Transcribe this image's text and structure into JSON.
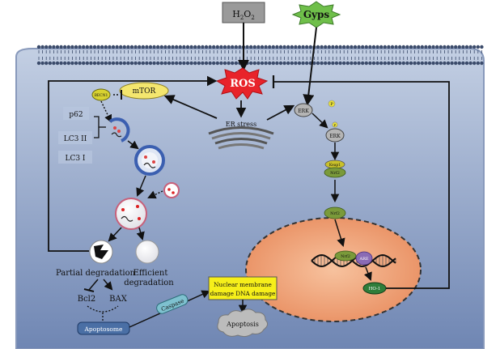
{
  "inputs": {
    "h2o2": "H2O2",
    "h2o2_base": "H",
    "h2o2_sub1": "2",
    "h2o2_mid": "O",
    "h2o2_sub2": "2",
    "gyps": "Gyps"
  },
  "nodes": {
    "ros": "ROS",
    "er_stress": "ER stress",
    "mtor": "mTOR",
    "becn1": "BECN1",
    "p62": "p62",
    "lc3_ii": "LC3 II",
    "lc3_i": "LC3 I",
    "erk": "ERK",
    "erk_p": "ERK",
    "p_label": "P",
    "p_label2": "P",
    "keap1": "Keap1",
    "nrf2_a": "Nrf2",
    "nrf2_b": "Nrf2",
    "nrf2_c": "Nrf2",
    "are": "ARE",
    "ho1": "HO-1"
  },
  "labels": {
    "partial_degradation": "Partial degradation",
    "efficient_line1": "Efficient",
    "efficient_line2": "degradation",
    "bcl2": "Bcl2",
    "bax": "BAX",
    "apoptosome": "Apoptosome",
    "caspase": "Caspase",
    "nuclear_line1": "Nuclear membrane",
    "nuclear_line2": "damage DNA damage",
    "apoptosis": "Apoptosis"
  },
  "colors": {
    "cell_fill": "#8fa3c6",
    "cell_stroke": "#6b82a8",
    "membrane": "#3a4a6a",
    "ros_red": "#e8232a",
    "nucleus_fill": "#ef9a6e",
    "gyps_green": "#6fbf4a",
    "h2o2_gray": "#9a9a9a",
    "mtor_yellow": "#f4e66e",
    "nuclear_box": "#f6ef1a",
    "ho1_green": "#2f7d3a"
  }
}
